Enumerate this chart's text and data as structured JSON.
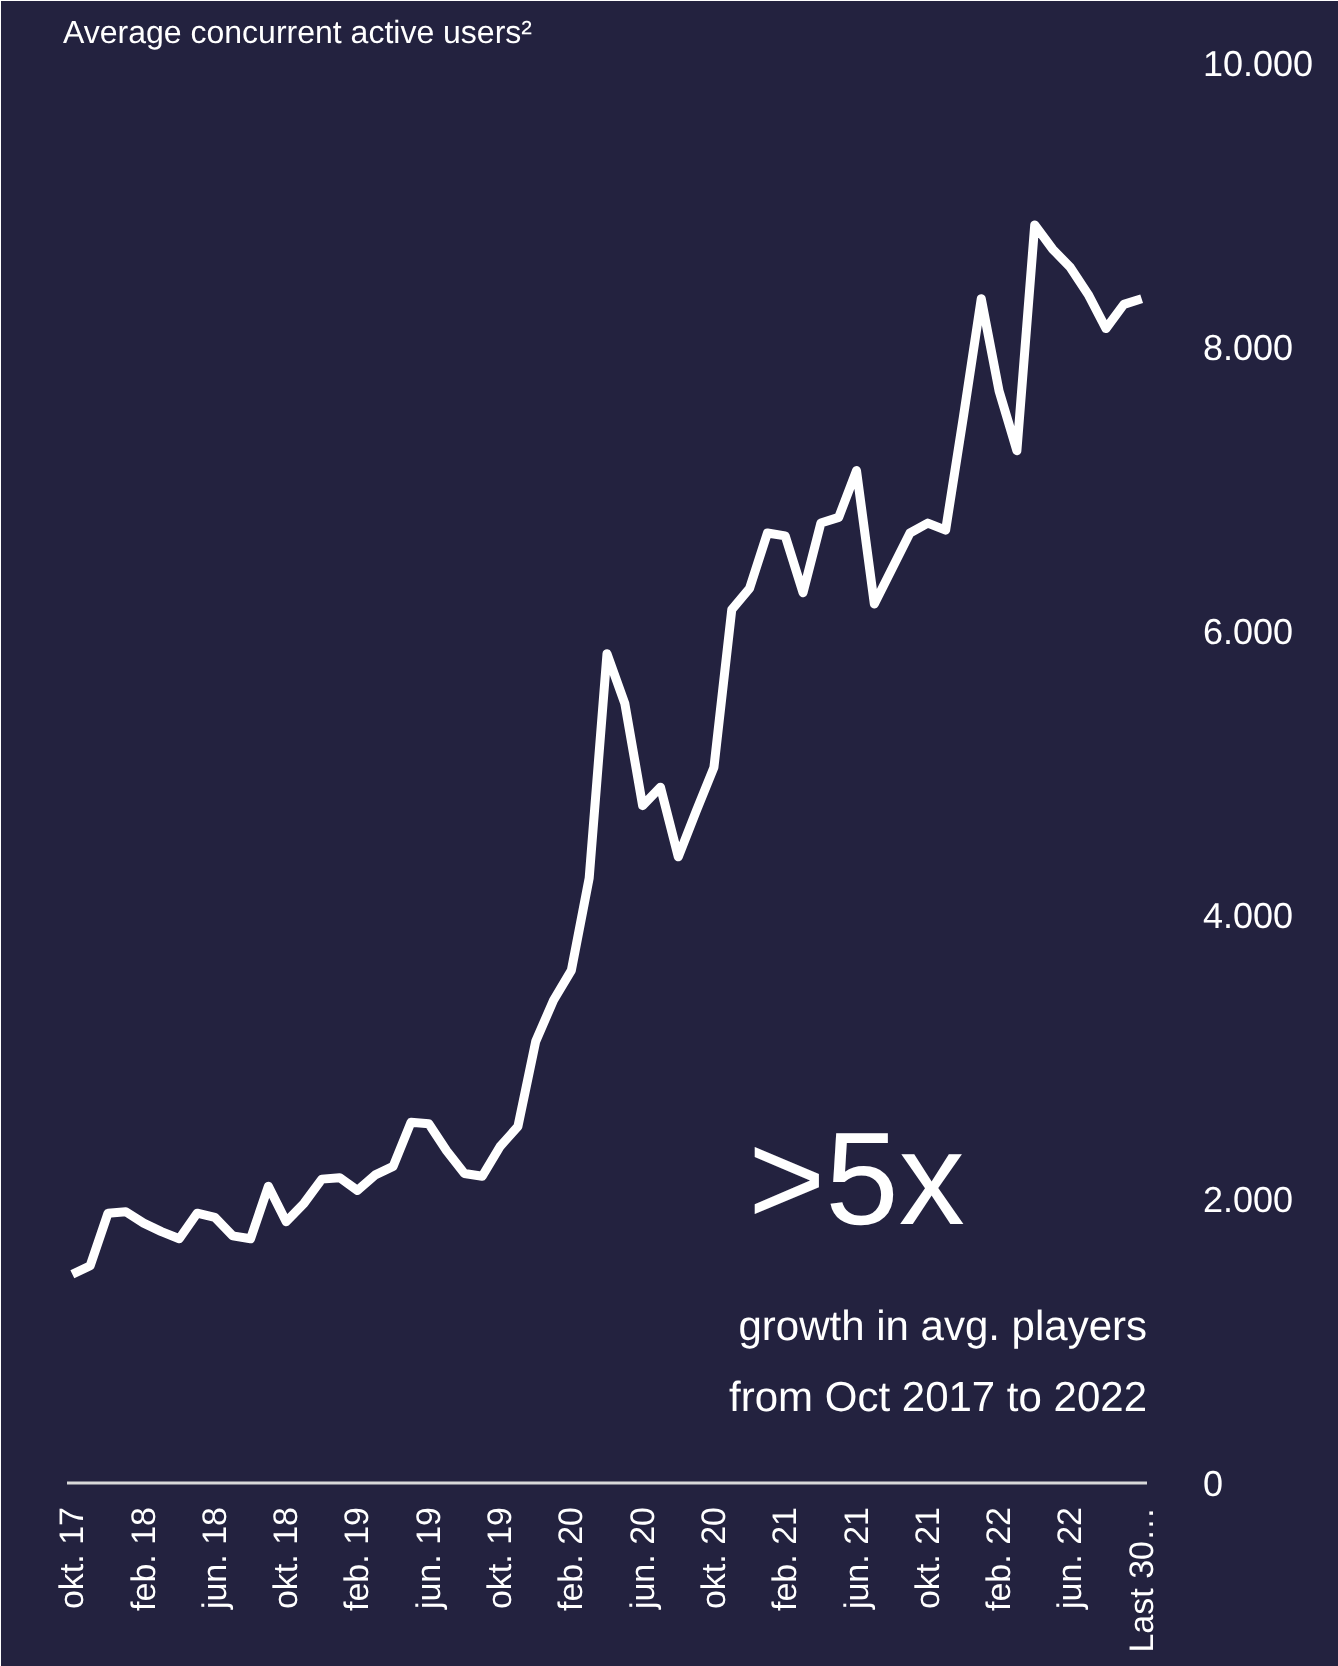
{
  "chart_data": {
    "type": "line",
    "title": "Average concurrent active users²",
    "categories": [
      "okt. 17",
      null,
      null,
      null,
      "feb. 18",
      null,
      null,
      null,
      "jun. 18",
      null,
      null,
      null,
      "okt. 18",
      null,
      null,
      null,
      "feb. 19",
      null,
      null,
      null,
      "jun. 19",
      null,
      null,
      null,
      "okt. 19",
      null,
      null,
      null,
      "feb. 20",
      null,
      null,
      null,
      "jun. 20",
      null,
      null,
      null,
      "okt. 20",
      null,
      null,
      null,
      "feb. 21",
      null,
      null,
      null,
      "jun. 21",
      null,
      null,
      null,
      "okt. 21",
      null,
      null,
      null,
      "feb. 22",
      null,
      null,
      null,
      "jun. 22",
      null,
      null,
      null,
      "Last 30…"
    ],
    "series": [
      {
        "color": "#ffffff",
        "values": [
          1470,
          1530,
          1900,
          1910,
          1830,
          1770,
          1720,
          1900,
          1870,
          1740,
          1720,
          2090,
          1840,
          1970,
          2140,
          2150,
          2060,
          2170,
          2230,
          2540,
          2530,
          2340,
          2180,
          2160,
          2370,
          2510,
          3110,
          3400,
          3610,
          4260,
          5840,
          5490,
          4770,
          4900,
          4410,
          4730,
          5040,
          6150,
          6300,
          6690,
          6670,
          6270,
          6760,
          6800,
          7130,
          6190,
          6440,
          6690,
          6760,
          6710,
          7510,
          8340,
          7690,
          7270,
          8860,
          8690,
          8560,
          8370,
          8130,
          8300,
          8340
        ]
      }
    ],
    "ylim": [
      0,
      10000
    ],
    "yticks": [
      0,
      {
        "value": 2000,
        "label": "2.000"
      },
      {
        "value": 4000,
        "label": "4.000"
      },
      {
        "value": 6000,
        "label": "6.000"
      },
      {
        "value": 8000,
        "label": "8.000"
      },
      {
        "value": 10000,
        "label": "10.000"
      }
    ],
    "grid": false,
    "marker": "none",
    "line_style": "solid",
    "annotations": [
      ">5x",
      "growth in avg. players\nfrom Oct 2017 to 2022"
    ]
  }
}
